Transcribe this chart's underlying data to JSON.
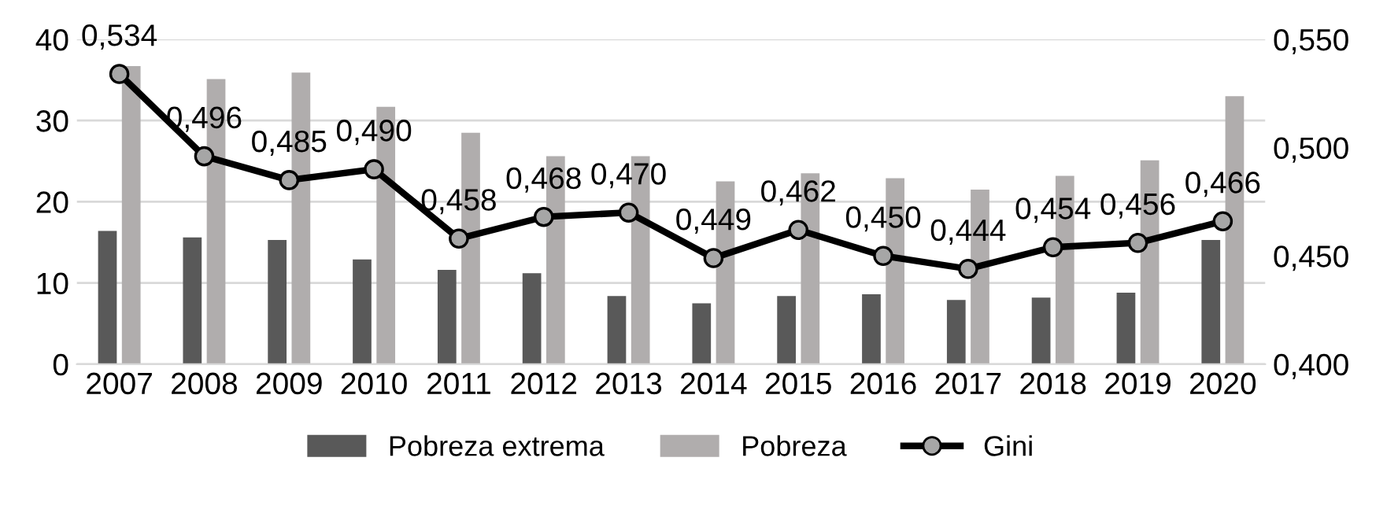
{
  "chart_data": {
    "type": "bar",
    "categories": [
      "2007",
      "2008",
      "2009",
      "2010",
      "2011",
      "2012",
      "2013",
      "2014",
      "2015",
      "2016",
      "2017",
      "2018",
      "2019",
      "2020"
    ],
    "series": [
      {
        "name": "Pobreza extrema",
        "color": "#595959",
        "values": [
          16.4,
          15.6,
          15.3,
          12.9,
          11.6,
          11.2,
          8.4,
          7.5,
          8.4,
          8.6,
          7.9,
          8.2,
          8.8,
          15.3
        ]
      },
      {
        "name": "Pobreza",
        "color": "#b0adad",
        "values": [
          36.7,
          35.1,
          35.9,
          31.7,
          28.5,
          25.6,
          25.6,
          22.5,
          23.5,
          22.9,
          21.5,
          23.2,
          25.1,
          33.0
        ]
      },
      {
        "name": "Gini",
        "type": "line",
        "axis": "y2",
        "color": "#000000",
        "marker": "circle",
        "values": [
          0.534,
          0.496,
          0.485,
          0.49,
          0.458,
          0.468,
          0.47,
          0.449,
          0.462,
          0.45,
          0.444,
          0.454,
          0.456,
          0.466
        ],
        "value_labels": [
          "0,534",
          "0,496",
          "0,485",
          "0,490",
          "0,458",
          "0,468",
          "0,470",
          "0,449",
          "0,462",
          "0,450",
          "0,444",
          "0,454",
          "0,456",
          "0,466"
        ]
      }
    ],
    "ylim": [
      0,
      40
    ],
    "yticks": [
      0,
      10,
      20,
      30,
      40
    ],
    "y2lim": [
      0.4,
      0.55
    ],
    "y2ticks": [
      {
        "value": 0.4,
        "label": "0,400"
      },
      {
        "value": 0.45,
        "label": "0,450"
      },
      {
        "value": 0.5,
        "label": "0,500"
      },
      {
        "value": 0.55,
        "label": "0,550"
      }
    ],
    "grid": "y",
    "legend": "bottom"
  }
}
